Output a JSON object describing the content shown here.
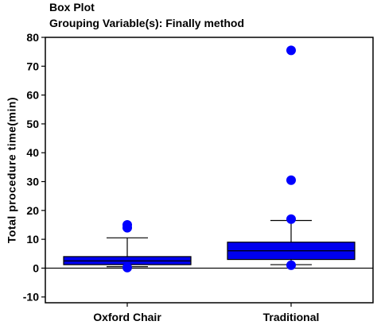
{
  "chart_data": {
    "type": "box",
    "title": "Box Plot",
    "subtitle": "Grouping Variable(s): Finally method",
    "ylabel": "Total procedure time(min)",
    "xlabel": "",
    "ylim": [
      -12,
      80
    ],
    "yticks": [
      -10,
      0,
      10,
      20,
      30,
      40,
      50,
      60,
      70,
      80
    ],
    "grid": false,
    "reference_line": 0,
    "colors": {
      "box_fill": "#0000ee",
      "outlier": "#0000ff",
      "frame": "#000000"
    },
    "categories": [
      "Oxford Chair",
      "Traditional"
    ],
    "boxes": [
      {
        "category": "Oxford Chair",
        "whisker_low": 0.5,
        "q1": 1.2,
        "median": 2.5,
        "q3": 4.0,
        "whisker_high": 10.5,
        "outliers": [
          14.0,
          15.0,
          0.2
        ]
      },
      {
        "category": "Traditional",
        "whisker_low": 1.2,
        "q1": 3.0,
        "median": 6.0,
        "q3": 9.0,
        "whisker_high": 16.5,
        "outliers": [
          17.0,
          30.5,
          75.5,
          1.0
        ]
      }
    ]
  }
}
